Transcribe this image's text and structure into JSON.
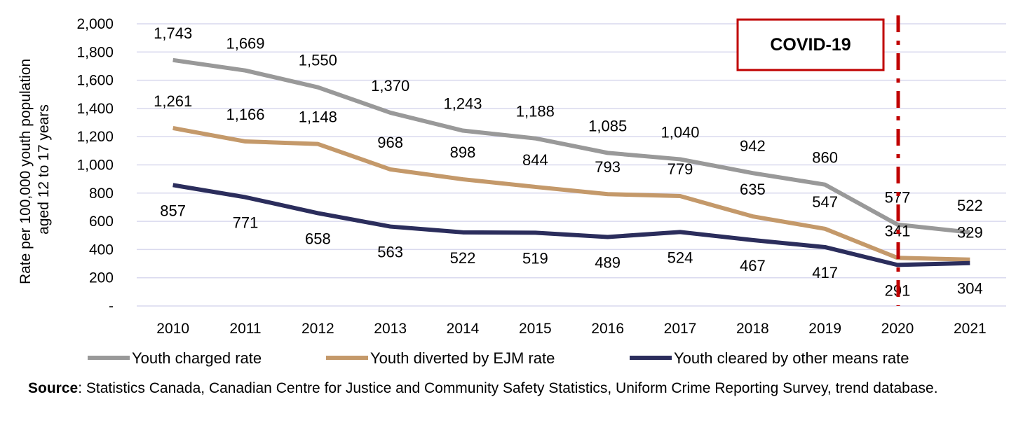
{
  "chart_data": {
    "type": "line",
    "title": "",
    "ylabel": "Rate per 100,000 youth population aged 12 to 17 years",
    "ylabel_lines": [
      "Rate per 100,000 youth population",
      "aged 12 to 17 years"
    ],
    "xlabel": "",
    "ylim": [
      0,
      2000
    ],
    "yticks": [
      0,
      200,
      400,
      600,
      800,
      1000,
      1200,
      1400,
      1600,
      1800,
      2000
    ],
    "ytick_labels": [
      "-",
      "200",
      "400",
      "600",
      "800",
      "1,000",
      "1,200",
      "1,400",
      "1,600",
      "1,800",
      "2,000"
    ],
    "grid": true,
    "legend_placement": "bottom",
    "categories": [
      "2010",
      "2011",
      "2012",
      "2013",
      "2014",
      "2015",
      "2016",
      "2017",
      "2018",
      "2019",
      "2020",
      "2021"
    ],
    "series": [
      {
        "name": "Youth charged rate",
        "color": "#999999",
        "values": [
          1743,
          1669,
          1550,
          1370,
          1243,
          1188,
          1085,
          1040,
          942,
          860,
          577,
          522
        ],
        "labels": [
          "1,743",
          "1,669",
          "1,550",
          "1,370",
          "1,243",
          "1,188",
          "1,085",
          "1,040",
          "942",
          "860",
          "577",
          "522"
        ],
        "label_side": "above"
      },
      {
        "name": "Youth diverted by EJM rate",
        "color": "#C4996A",
        "values": [
          1261,
          1166,
          1148,
          968,
          898,
          844,
          793,
          779,
          635,
          547,
          341,
          329
        ],
        "labels": [
          "1,261",
          "1,166",
          "1,148",
          "968",
          "898",
          "844",
          "793",
          "779",
          "635",
          "547",
          "341",
          "329"
        ],
        "label_side": "above"
      },
      {
        "name": "Youth cleared by other means rate",
        "color": "#2B2D5C",
        "values": [
          857,
          771,
          658,
          563,
          522,
          519,
          489,
          524,
          467,
          417,
          291,
          304
        ],
        "labels": [
          "857",
          "771",
          "658",
          "563",
          "522",
          "519",
          "489",
          "524",
          "467",
          "417",
          "291",
          "304"
        ],
        "label_side": "below"
      }
    ],
    "annotation": {
      "text": "COVID-19",
      "at_category": "2020",
      "color": "#C00000"
    }
  },
  "source": {
    "label": "Source",
    "text": ": Statistics Canada, Canadian Centre for Justice and Community Safety Statistics, Uniform Crime Reporting Survey, trend database."
  },
  "colors": {
    "grid": "#D9D9EE",
    "covid": "#C00000"
  }
}
